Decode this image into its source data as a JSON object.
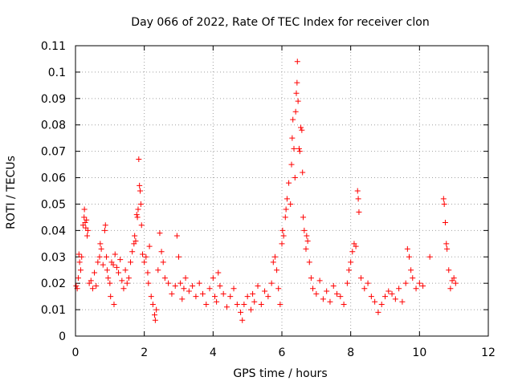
{
  "chart_data": {
    "type": "scatter",
    "title": "Day 066 of 2022, Rate Of TEC Index for receiver clon",
    "xlabel": "GPS time / hours",
    "ylabel": "ROTI / TECUs",
    "xlim": [
      0,
      12
    ],
    "ylim": [
      0,
      0.11
    ],
    "xticks": [
      0,
      2,
      4,
      6,
      8,
      10,
      12
    ],
    "xtick_labels": [
      "0",
      "2",
      "4",
      "6",
      "8",
      "10",
      "12"
    ],
    "yticks": [
      0,
      0.01,
      0.02,
      0.03,
      0.04,
      0.05,
      0.06,
      0.07,
      0.08,
      0.09,
      0.1,
      0.11
    ],
    "ytick_labels": [
      "0",
      "0.01",
      "0.02",
      "0.03",
      "0.04",
      "0.05",
      "0.06",
      "0.07",
      "0.08",
      "0.09",
      "0.1",
      "0.11"
    ],
    "grid": true,
    "marker": "+",
    "color": "#ff0000",
    "series": [
      {
        "name": "ROTI",
        "points": [
          [
            0.02,
            0.019
          ],
          [
            0.05,
            0.018
          ],
          [
            0.08,
            0.022
          ],
          [
            0.1,
            0.031
          ],
          [
            0.12,
            0.028
          ],
          [
            0.15,
            0.025
          ],
          [
            0.18,
            0.03
          ],
          [
            0.22,
            0.042
          ],
          [
            0.25,
            0.045
          ],
          [
            0.26,
            0.048
          ],
          [
            0.28,
            0.043
          ],
          [
            0.3,
            0.041
          ],
          [
            0.32,
            0.044
          ],
          [
            0.34,
            0.038
          ],
          [
            0.36,
            0.04
          ],
          [
            0.4,
            0.02
          ],
          [
            0.45,
            0.021
          ],
          [
            0.5,
            0.018
          ],
          [
            0.55,
            0.024
          ],
          [
            0.6,
            0.019
          ],
          [
            0.65,
            0.028
          ],
          [
            0.7,
            0.03
          ],
          [
            0.72,
            0.035
          ],
          [
            0.75,
            0.033
          ],
          [
            0.8,
            0.027
          ],
          [
            0.85,
            0.04
          ],
          [
            0.87,
            0.042
          ],
          [
            0.9,
            0.03
          ],
          [
            0.92,
            0.025
          ],
          [
            0.95,
            0.022
          ],
          [
            1.0,
            0.02
          ],
          [
            1.02,
            0.015
          ],
          [
            1.05,
            0.028
          ],
          [
            1.1,
            0.027
          ],
          [
            1.12,
            0.012
          ],
          [
            1.15,
            0.031
          ],
          [
            1.2,
            0.026
          ],
          [
            1.25,
            0.024
          ],
          [
            1.3,
            0.029
          ],
          [
            1.35,
            0.021
          ],
          [
            1.4,
            0.018
          ],
          [
            1.45,
            0.025
          ],
          [
            1.5,
            0.02
          ],
          [
            1.55,
            0.022
          ],
          [
            1.6,
            0.028
          ],
          [
            1.65,
            0.032
          ],
          [
            1.7,
            0.035
          ],
          [
            1.72,
            0.038
          ],
          [
            1.75,
            0.036
          ],
          [
            1.78,
            0.046
          ],
          [
            1.8,
            0.045
          ],
          [
            1.82,
            0.048
          ],
          [
            1.84,
            0.067
          ],
          [
            1.86,
            0.057
          ],
          [
            1.88,
            0.055
          ],
          [
            1.9,
            0.05
          ],
          [
            1.92,
            0.042
          ],
          [
            1.95,
            0.031
          ],
          [
            2.0,
            0.028
          ],
          [
            2.05,
            0.03
          ],
          [
            2.1,
            0.024
          ],
          [
            2.12,
            0.02
          ],
          [
            2.15,
            0.034
          ],
          [
            2.2,
            0.015
          ],
          [
            2.25,
            0.012
          ],
          [
            2.3,
            0.008
          ],
          [
            2.32,
            0.006
          ],
          [
            2.35,
            0.01
          ],
          [
            2.4,
            0.025
          ],
          [
            2.45,
            0.039
          ],
          [
            2.5,
            0.032
          ],
          [
            2.55,
            0.028
          ],
          [
            2.6,
            0.022
          ],
          [
            2.7,
            0.02
          ],
          [
            2.8,
            0.016
          ],
          [
            2.9,
            0.019
          ],
          [
            2.95,
            0.038
          ],
          [
            3.0,
            0.03
          ],
          [
            3.05,
            0.02
          ],
          [
            3.1,
            0.014
          ],
          [
            3.15,
            0.018
          ],
          [
            3.2,
            0.022
          ],
          [
            3.3,
            0.017
          ],
          [
            3.4,
            0.019
          ],
          [
            3.5,
            0.015
          ],
          [
            3.6,
            0.02
          ],
          [
            3.7,
            0.016
          ],
          [
            3.8,
            0.012
          ],
          [
            3.9,
            0.018
          ],
          [
            4.0,
            0.022
          ],
          [
            4.05,
            0.015
          ],
          [
            4.1,
            0.013
          ],
          [
            4.15,
            0.024
          ],
          [
            4.2,
            0.019
          ],
          [
            4.3,
            0.016
          ],
          [
            4.4,
            0.011
          ],
          [
            4.5,
            0.015
          ],
          [
            4.6,
            0.018
          ],
          [
            4.7,
            0.012
          ],
          [
            4.8,
            0.009
          ],
          [
            4.85,
            0.006
          ],
          [
            4.9,
            0.012
          ],
          [
            5.0,
            0.015
          ],
          [
            5.1,
            0.01
          ],
          [
            5.15,
            0.016
          ],
          [
            5.2,
            0.013
          ],
          [
            5.3,
            0.019
          ],
          [
            5.4,
            0.012
          ],
          [
            5.5,
            0.017
          ],
          [
            5.6,
            0.015
          ],
          [
            5.7,
            0.02
          ],
          [
            5.75,
            0.028
          ],
          [
            5.8,
            0.03
          ],
          [
            5.85,
            0.025
          ],
          [
            5.9,
            0.018
          ],
          [
            5.95,
            0.012
          ],
          [
            6.0,
            0.035
          ],
          [
            6.02,
            0.04
          ],
          [
            6.05,
            0.038
          ],
          [
            6.1,
            0.045
          ],
          [
            6.12,
            0.048
          ],
          [
            6.15,
            0.052
          ],
          [
            6.2,
            0.058
          ],
          [
            6.25,
            0.05
          ],
          [
            6.28,
            0.065
          ],
          [
            6.3,
            0.075
          ],
          [
            6.32,
            0.082
          ],
          [
            6.35,
            0.071
          ],
          [
            6.38,
            0.06
          ],
          [
            6.4,
            0.085
          ],
          [
            6.42,
            0.092
          ],
          [
            6.44,
            0.096
          ],
          [
            6.45,
            0.104
          ],
          [
            6.47,
            0.089
          ],
          [
            6.5,
            0.071
          ],
          [
            6.52,
            0.07
          ],
          [
            6.55,
            0.079
          ],
          [
            6.58,
            0.078
          ],
          [
            6.6,
            0.062
          ],
          [
            6.62,
            0.045
          ],
          [
            6.65,
            0.04
          ],
          [
            6.7,
            0.033
          ],
          [
            6.72,
            0.038
          ],
          [
            6.75,
            0.036
          ],
          [
            6.8,
            0.028
          ],
          [
            6.85,
            0.022
          ],
          [
            6.9,
            0.018
          ],
          [
            7.0,
            0.016
          ],
          [
            7.1,
            0.021
          ],
          [
            7.2,
            0.014
          ],
          [
            7.3,
            0.017
          ],
          [
            7.4,
            0.013
          ],
          [
            7.5,
            0.019
          ],
          [
            7.6,
            0.016
          ],
          [
            7.7,
            0.015
          ],
          [
            7.8,
            0.012
          ],
          [
            7.9,
            0.02
          ],
          [
            7.95,
            0.025
          ],
          [
            8.0,
            0.028
          ],
          [
            8.05,
            0.032
          ],
          [
            8.1,
            0.035
          ],
          [
            8.15,
            0.034
          ],
          [
            8.2,
            0.055
          ],
          [
            8.22,
            0.052
          ],
          [
            8.24,
            0.047
          ],
          [
            8.3,
            0.022
          ],
          [
            8.4,
            0.018
          ],
          [
            8.5,
            0.02
          ],
          [
            8.6,
            0.015
          ],
          [
            8.7,
            0.013
          ],
          [
            8.8,
            0.009
          ],
          [
            8.9,
            0.012
          ],
          [
            9.0,
            0.015
          ],
          [
            9.1,
            0.017
          ],
          [
            9.2,
            0.016
          ],
          [
            9.3,
            0.014
          ],
          [
            9.4,
            0.018
          ],
          [
            9.5,
            0.013
          ],
          [
            9.6,
            0.02
          ],
          [
            9.65,
            0.033
          ],
          [
            9.7,
            0.03
          ],
          [
            9.75,
            0.025
          ],
          [
            9.8,
            0.022
          ],
          [
            9.9,
            0.018
          ],
          [
            10.0,
            0.02
          ],
          [
            10.1,
            0.019
          ],
          [
            10.3,
            0.03
          ],
          [
            10.7,
            0.052
          ],
          [
            10.72,
            0.05
          ],
          [
            10.75,
            0.043
          ],
          [
            10.78,
            0.035
          ],
          [
            10.8,
            0.033
          ],
          [
            10.85,
            0.025
          ],
          [
            10.9,
            0.018
          ],
          [
            10.95,
            0.021
          ],
          [
            11.0,
            0.022
          ],
          [
            11.05,
            0.02
          ]
        ]
      }
    ]
  }
}
